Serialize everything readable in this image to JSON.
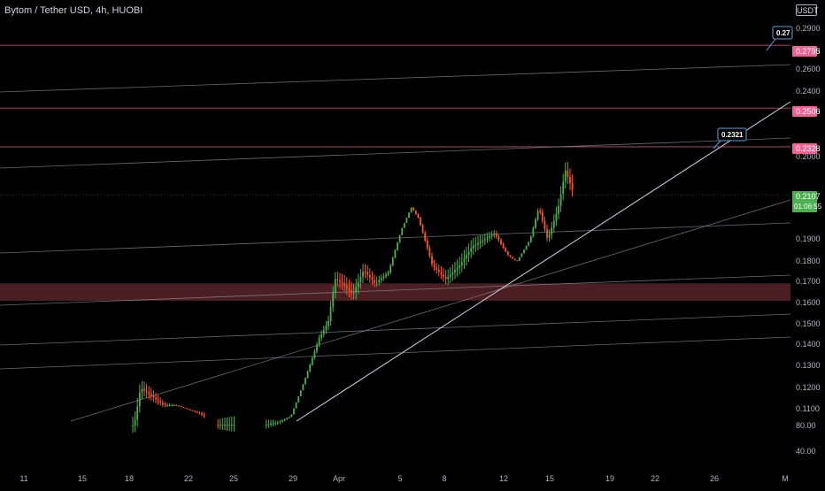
{
  "header": {
    "title": "Bytom / Tether USD, 4h, HUOBI",
    "currency": "USDT"
  },
  "chart_data": {
    "type": "candlestick",
    "title": "Bytom / Tether USD, 4h, HUOBI",
    "y_tick_labels": [
      "0.2900",
      "0.2700",
      "0.2600",
      "0.2400",
      "0.2300",
      "0.2000",
      "0.1900",
      "0.1800",
      "0.1700",
      "0.1600",
      "0.1500",
      "0.1400",
      "0.1300",
      "0.1200",
      "0.1100",
      "80.00",
      "40.00"
    ],
    "x_tick_labels": [
      "11",
      "15",
      "18",
      "22",
      "25",
      "29",
      "Apr",
      "5",
      "8",
      "12",
      "15",
      "19",
      "22",
      "26",
      "M"
    ],
    "price_labels": [
      {
        "value": "0.2795",
        "color": "#f06292"
      },
      {
        "value": "0.2506",
        "color": "#f06292"
      },
      {
        "value": "0.2328",
        "color": "#f06292"
      },
      {
        "value": "0.2107",
        "color": "#4caf50"
      }
    ],
    "countdown": "01:06:55",
    "callouts": [
      "0.2321",
      "0.27"
    ],
    "horizontal_levels": [
      0.2795,
      0.2506,
      0.2328
    ],
    "support_zone": [
      0.162,
      0.17
    ],
    "last_price": 0.2107,
    "colors": {
      "up": "#4caf50",
      "down": "#ff5722",
      "level": "#f06292",
      "zone": "#4a1e22",
      "trendline": "#d1d4dc"
    }
  }
}
